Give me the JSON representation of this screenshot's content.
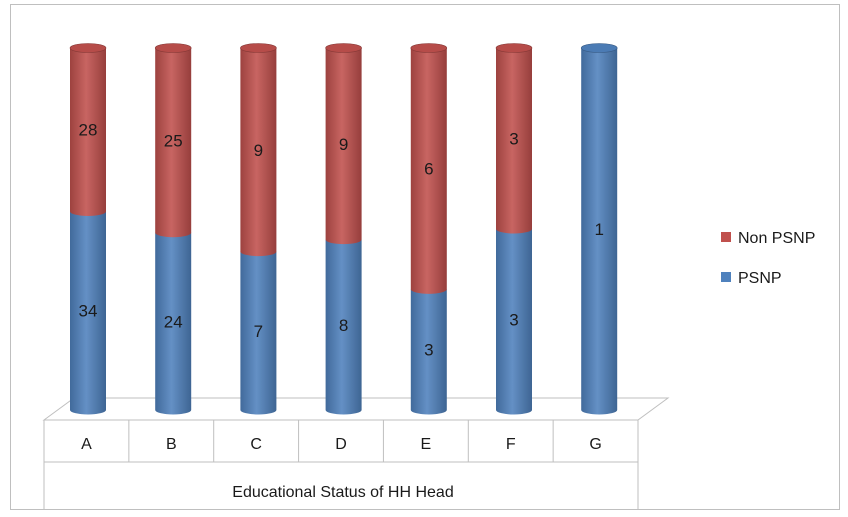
{
  "chart_data": {
    "type": "bar",
    "stacked": "100%",
    "style": "3d-cylinder",
    "categories": [
      "A",
      "B",
      "C",
      "D",
      "E",
      "F",
      "G"
    ],
    "series": [
      {
        "name": "PSNP",
        "color": "#4f81bd",
        "values": [
          34,
          24,
          7,
          8,
          3,
          3,
          1
        ]
      },
      {
        "name": "Non PSNP",
        "color": "#c0504d",
        "values": [
          28,
          25,
          9,
          9,
          6,
          3,
          0
        ]
      }
    ],
    "title": "",
    "xlabel": "Educational Status of HH Head",
    "ylabel": "",
    "legend_position": "right",
    "legend_order": [
      "Non PSNP",
      "PSNP"
    ],
    "grid": false
  }
}
